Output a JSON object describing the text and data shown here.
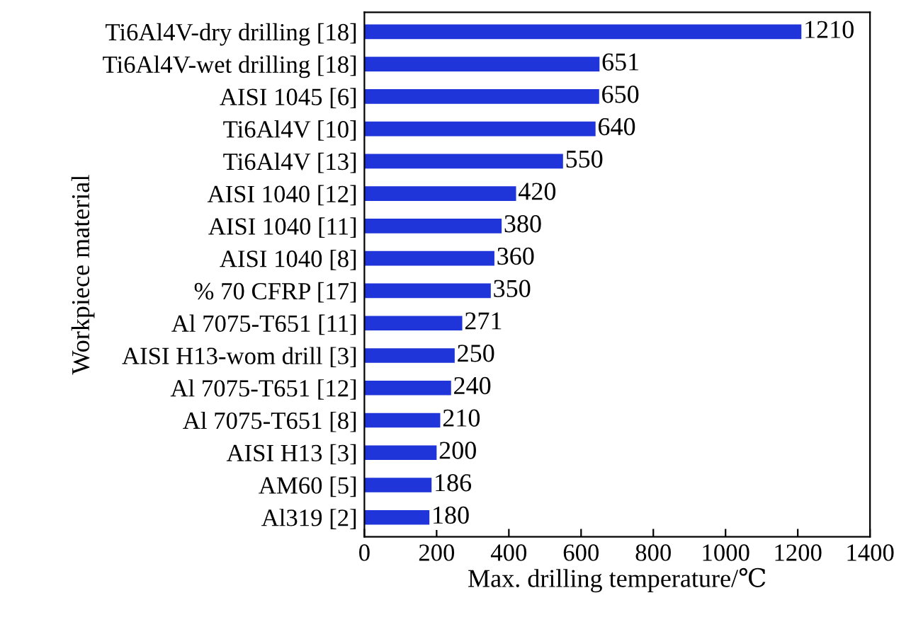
{
  "chart_data": {
    "type": "bar",
    "orientation": "horizontal",
    "xlabel": "Max. drilling temperature/℃",
    "ylabel": "Workpiece material",
    "categories": [
      "Ti6Al4V-dry drilling [18]",
      "Ti6Al4V-wet drilling [18]",
      "AISI 1045 [6]",
      "Ti6Al4V [10]",
      "Ti6Al4V [13]",
      "AISI 1040 [12]",
      "AISI 1040 [11]",
      "AISI 1040 [8]",
      "% 70 CFRP [17]",
      "Al 7075-T651 [11]",
      "AISI H13-wom drill [3]",
      "Al 7075-T651 [12]",
      "Al 7075-T651 [8]",
      "AISI H13 [3]",
      "AM60 [5]",
      "Al319 [2]"
    ],
    "values": [
      1210,
      651,
      650,
      640,
      550,
      420,
      380,
      360,
      350,
      271,
      250,
      240,
      210,
      200,
      186,
      180
    ],
    "color": "#1f35d9",
    "xlim": [
      0,
      1400
    ],
    "xticks": [
      0,
      200,
      400,
      600,
      800,
      1000,
      1200,
      1400
    ],
    "data_labels": true,
    "grid": false,
    "legend": false
  }
}
